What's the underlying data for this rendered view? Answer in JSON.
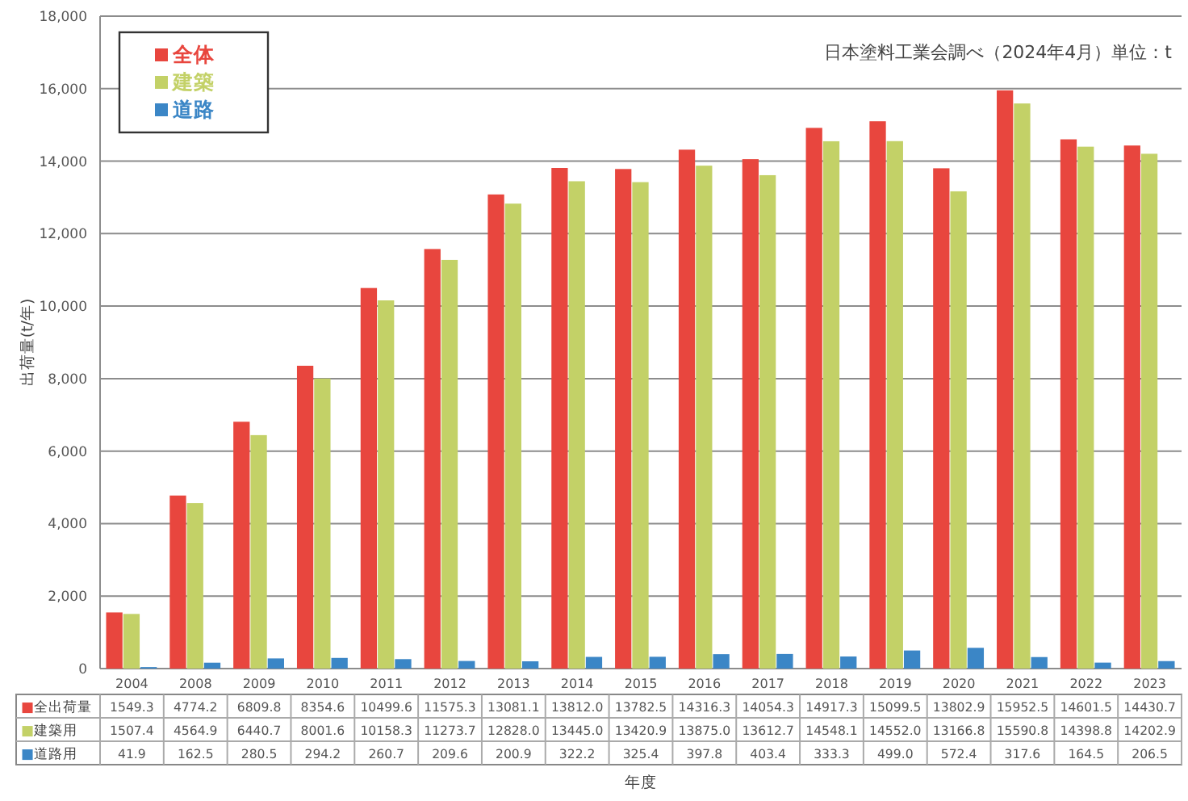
{
  "chart_data": {
    "type": "bar",
    "ylabel": "出荷量(t/年)",
    "annotations": [
      "日本塗料工業会調べ（2024年4月）単位：t",
      "■全出荷量",
      "■建築用",
      "■道路用",
      "年度"
    ],
    "categories": [
      "2004",
      "2008",
      "2009",
      "2010",
      "2011",
      "2012",
      "2013",
      "2014",
      "2015",
      "2016",
      "2017",
      "2018",
      "2019",
      "2020",
      "2021",
      "2022",
      "2023"
    ],
    "series": [
      {
        "name": "全体",
        "color": "#e8463e",
        "values": [
          1549.3,
          4774.2,
          6809.8,
          8354.6,
          10499.6,
          11575.3,
          13081.1,
          13812.0,
          13782.5,
          14316.3,
          14054.3,
          14917.3,
          15099.5,
          13802.9,
          15952.5,
          14601.5,
          14430.7
        ],
        "value_labels": [
          "1549.3",
          "4774.2",
          "6809.8",
          "8354.6",
          "10499.6",
          "11575.3",
          "13081.1",
          "13812.0",
          "13782.5",
          "14316.3",
          "14054.3",
          "14917.3",
          "15099.5",
          "13802.9",
          "15952.5",
          "14601.5",
          "14430.7"
        ]
      },
      {
        "name": "建築",
        "color": "#c3d167",
        "values": [
          1507.4,
          4564.9,
          6440.7,
          8001.6,
          10158.3,
          11273.7,
          12828.0,
          13445.0,
          13420.9,
          13875.0,
          13612.7,
          14548.1,
          14552.0,
          13166.8,
          15590.8,
          14398.8,
          14202.9
        ],
        "value_labels": [
          "1507.4",
          "4564.9",
          "6440.7",
          "8001.6",
          "10158.3",
          "11273.7",
          "12828.0",
          "13445.0",
          "13420.9",
          "13875.0",
          "13612.7",
          "14548.1",
          "14552.0",
          "13166.8",
          "15590.8",
          "14398.8",
          "14202.9"
        ]
      },
      {
        "name": "道路",
        "color": "#3b86c6",
        "values": [
          41.9,
          162.5,
          280.5,
          294.2,
          260.7,
          209.6,
          200.9,
          322.2,
          325.4,
          397.8,
          403.4,
          333.3,
          499.0,
          572.4,
          317.6,
          164.5,
          206.5
        ],
        "value_labels": [
          "41.9",
          "162.5",
          "280.5",
          "294.2",
          "260.7",
          "209.6",
          "200.9",
          "322.2",
          "325.4",
          "397.8",
          "403.4",
          "333.3",
          "499.0",
          "572.4",
          "317.6",
          "164.5",
          "206.5"
        ]
      }
    ],
    "ylim": [
      0,
      18000
    ],
    "yticks": [
      0,
      {
        "value": 2000,
        "label": "2,000"
      },
      {
        "value": 4000,
        "label": "4,000"
      },
      {
        "value": 6000,
        "label": "6,000"
      },
      {
        "value": 8000,
        "label": "8,000"
      },
      {
        "value": 10000,
        "label": "10,000"
      },
      {
        "value": 12000,
        "label": "12,000"
      },
      {
        "value": 14000,
        "label": "14,000"
      },
      {
        "value": 16000,
        "label": "16,000"
      },
      {
        "value": 18000,
        "label": "18,000"
      }
    ],
    "grid": "y",
    "legend": "top left"
  }
}
